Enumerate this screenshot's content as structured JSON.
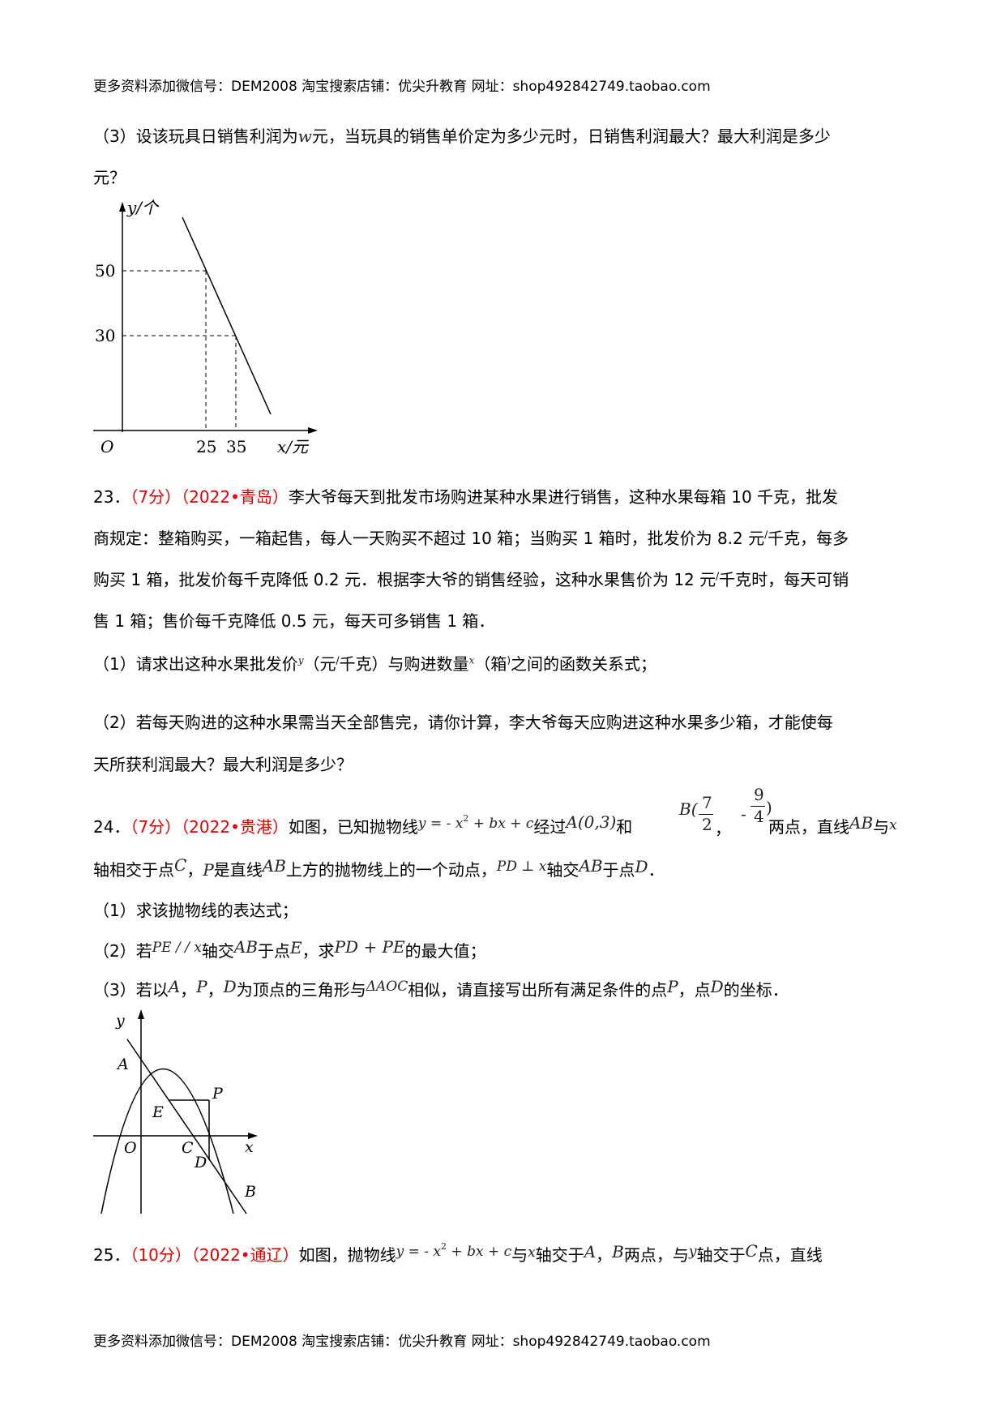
{
  "header": {
    "text": "更多资料添加微信号：DEM2008 淘宝搜索店铺：优尖升教育 网址：shop492842749.taobao.com"
  },
  "footer": {
    "text": "更多资料添加微信号：DEM2008 淘宝搜索店铺：优尖升教育 网址：shop492842749.taobao.com"
  },
  "q22_part3": {
    "text1": "（3）设该玩具日销售利润为",
    "var_w": "w",
    "text2": "元，当玩具的销售单价定为多少元时，日销售利润最大？最大利润是多少",
    "text3": "元？"
  },
  "figure1": {
    "y_label": "y/个",
    "x_label": "x/元",
    "origin": "O",
    "y_ticks": [
      "50",
      "30"
    ],
    "x_ticks": [
      "25",
      "35"
    ]
  },
  "q23": {
    "number": "23．",
    "score": "（7分）",
    "source": "（2022•青岛）",
    "line1_rest": "李大爷每天到批发市场购进某种水果进行销售，这种水果每箱 10 千克，批发",
    "line2_a": "商规定：整箱购买，一箱起售，每人一天购买不超过 10 箱；当购买 1 箱时，批发价为 8.2 元",
    "slash": "/",
    "line2_b": "千克，每多",
    "line3_a": "购买 1 箱，批发价每千克降低 0.2 元．根据李大爷的销售经验，这种水果售价为 12 元",
    "line3_b": "千克时，每天可销",
    "line4": "售 1 箱；售价每千克降低 0.5 元，每天可多销售 1 箱．",
    "p1_a": "（1）请求出这种水果批发价",
    "p1_y": "y",
    "p1_b": "（元",
    "p1_c": "千克）与购进数量",
    "p1_x": "x",
    "p1_d": "（箱",
    "p1_paren": ")",
    "p1_e": "之间的函数关系式；",
    "p2_a": "（2）若每天购进的这种水果需当天全部售完，请你计算，李大爷每天应购进这种水果多少箱，才能使每",
    "p2_b": "天所获利润最大？最大利润是多少？"
  },
  "q24": {
    "number": "24．",
    "score": "（7分）",
    "source": "（2022•贵港）",
    "t1": "如图，已知抛物线",
    "formula": "y = - x",
    "sq": "2",
    "formula_tail": " + bx + c",
    "t2": "经过",
    "ptA": "A(0,3)",
    "t3": "和",
    "ptB_prefix": "B(",
    "frac1_num": "7",
    "frac1_den": "2",
    "comma": "，",
    "minus": "-",
    "frac2_num": "9",
    "frac2_den": "4",
    "ptB_close": ")",
    "t4": "两点，直线",
    "AB": "AB",
    "t5": "与",
    "x": "x",
    "l2_a": "轴相交于点",
    "C": "C",
    "l2_b": "，",
    "P": "P",
    "l2_c": "是直线",
    "l2_d": "上方的抛物线上的一个动点，",
    "PD_perp_x": "PD ⊥ x",
    "l2_e": "轴交",
    "l2_f": "于点",
    "D": "D",
    "l2_g": "．",
    "p1": "（1）求该抛物线的表达式；",
    "p2_a": "（2）若",
    "PE_par_x": "PE / / x",
    "p2_b": "轴交",
    "p2_c": "于点",
    "E": "E",
    "p2_d": "，求",
    "PD_PE": "PD + PE",
    "p2_e": "的最大值；",
    "p3_a": "（3）若以",
    "A": "A",
    "p3_b": "，",
    "p3_c": "，",
    "p3_d": "为顶点的三角形与",
    "AOC": "ΔAOC",
    "p3_e": "相似，请直接写出所有满足条件的点",
    "p3_f": "，点",
    "p3_g": "的坐标．"
  },
  "figure2": {
    "y": "y",
    "x": "x",
    "A": "A",
    "P": "P",
    "E": "E",
    "O": "O",
    "C": "C",
    "D": "D",
    "B": "B"
  },
  "q25": {
    "number": "25．",
    "score": "（10分）",
    "source": "（2022•通辽）",
    "t1": "如图，抛物线",
    "formula": "y = - x",
    "sq": "2",
    "formula_tail": " + bx + c",
    "t2": "与",
    "x": "x",
    "t3": "轴交于",
    "A": "A",
    "t4": "，",
    "B": "B",
    "t5": "两点，与",
    "y": "y",
    "t6": "轴交于",
    "C": "C",
    "t7": "点，直线"
  }
}
